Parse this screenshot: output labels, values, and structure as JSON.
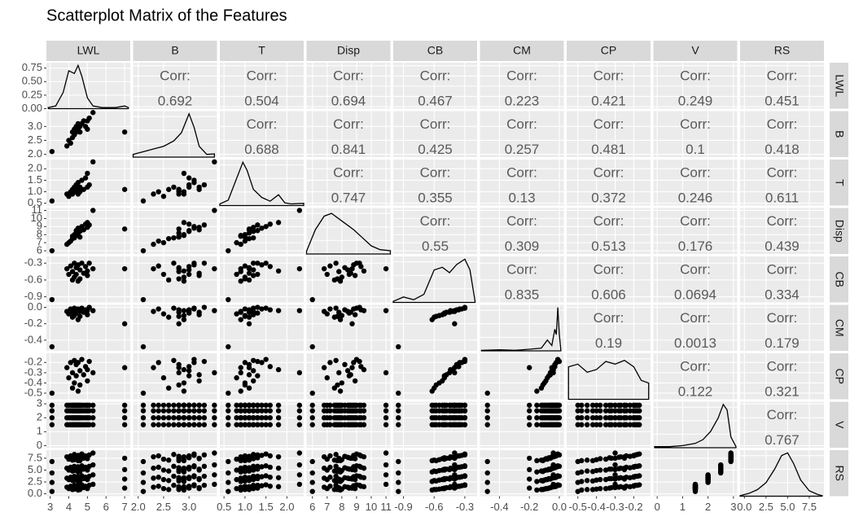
{
  "chart_data": {
    "type": "scatter_matrix",
    "title": "Scatterplot Matrix of the Features",
    "corr_label": "Corr:",
    "point_color": "#000000",
    "density_color": "#000000",
    "grid": true,
    "density_ylim": [
      0,
      0.85
    ],
    "density_ticks": [
      {
        "value": 0,
        "label": "0.00"
      },
      0.25,
      {
        "value": 0.5,
        "label": "0.50"
      },
      0.75
    ],
    "variables": [
      {
        "name": "LWL",
        "lim": [
          2.8,
          7.3
        ],
        "ticks": [
          3,
          4,
          5,
          6,
          7
        ],
        "values": [
          3.1,
          3.9,
          4.0,
          4.1,
          4.2,
          4.2,
          4.3,
          4.3,
          4.4,
          4.4,
          4.5,
          4.5,
          4.6,
          4.6,
          4.7,
          4.8,
          4.9,
          5.0,
          5.0,
          5.1,
          5.3,
          7.0
        ],
        "density": {
          "x": [
            2.9,
            3.3,
            3.7,
            4.0,
            4.3,
            4.5,
            4.7,
            5.0,
            5.3,
            5.8,
            6.5,
            7.0,
            7.2
          ],
          "y": [
            0.02,
            0.05,
            0.3,
            0.7,
            0.65,
            0.8,
            0.6,
            0.2,
            0.05,
            0.02,
            0.02,
            0.05,
            0.02
          ]
        }
      },
      {
        "name": "B",
        "lim": [
          1.9,
          3.55
        ],
        "ticks": [
          {
            "value": 2,
            "label": "2.0"
          },
          2.5,
          {
            "value": 3,
            "label": "3.0"
          }
        ],
        "values": [
          2.1,
          2.3,
          2.5,
          2.4,
          2.6,
          2.8,
          2.7,
          2.9,
          2.8,
          3.0,
          2.9,
          3.1,
          3.0,
          2.8,
          3.1,
          3.2,
          3.0,
          3.2,
          2.9,
          3.3,
          3.5,
          2.8
        ],
        "density": {
          "x": [
            1.9,
            2.1,
            2.3,
            2.5,
            2.7,
            2.85,
            3.0,
            3.1,
            3.2,
            3.35,
            3.5
          ],
          "y": [
            0.05,
            0.1,
            0.15,
            0.2,
            0.3,
            0.45,
            0.8,
            0.55,
            0.2,
            0.05,
            0.06
          ]
        }
      },
      {
        "name": "T",
        "lim": [
          0.4,
          2.4
        ],
        "ticks": [
          0.5,
          {
            "value": 1,
            "label": "1.0"
          },
          1.5,
          {
            "value": 2,
            "label": "2.0"
          }
        ],
        "values": [
          0.6,
          0.9,
          0.8,
          1.0,
          1.1,
          0.9,
          1.2,
          1.0,
          1.1,
          1.3,
          0.9,
          1.4,
          1.2,
          1.0,
          1.5,
          1.1,
          1.6,
          1.2,
          1.8,
          1.3,
          2.3,
          1.1
        ],
        "density": {
          "x": [
            0.4,
            0.6,
            0.8,
            0.95,
            1.05,
            1.2,
            1.4,
            1.6,
            1.8,
            1.95,
            2.1,
            2.4
          ],
          "y": [
            0.03,
            0.1,
            0.5,
            0.8,
            0.65,
            0.3,
            0.15,
            0.08,
            0.2,
            0.05,
            0.03,
            0.04
          ]
        }
      },
      {
        "name": "Disp",
        "lim": [
          5.6,
          11.3
        ],
        "ticks": [
          6,
          7,
          8,
          9,
          10,
          11
        ],
        "values": [
          6.0,
          6.8,
          7.0,
          7.2,
          7.5,
          7.8,
          7.6,
          8.0,
          8.2,
          8.5,
          7.9,
          8.8,
          8.4,
          7.7,
          9.0,
          8.6,
          9.3,
          8.9,
          9.5,
          9.2,
          11.0,
          8.7
        ],
        "density": {
          "x": [
            5.6,
            6.2,
            6.8,
            7.3,
            7.8,
            8.3,
            8.8,
            9.4,
            10,
            10.6,
            11.3
          ],
          "y": [
            0.05,
            0.45,
            0.7,
            0.75,
            0.65,
            0.55,
            0.45,
            0.3,
            0.15,
            0.08,
            0.06
          ]
        }
      },
      {
        "name": "CB",
        "lim": [
          -1.0,
          -0.18
        ],
        "ticks": [
          -0.9,
          -0.6,
          -0.3
        ],
        "values": [
          -0.95,
          -0.4,
          -0.5,
          -0.35,
          -0.6,
          -0.45,
          -0.3,
          -0.55,
          -0.38,
          -0.5,
          -0.62,
          -0.33,
          -0.42,
          -0.58,
          -0.3,
          -0.48,
          -0.36,
          -0.52,
          -0.44,
          -0.3,
          -0.4,
          -0.4
        ],
        "density": {
          "x": [
            -1.0,
            -0.9,
            -0.8,
            -0.7,
            -0.6,
            -0.52,
            -0.45,
            -0.38,
            -0.3,
            -0.25,
            -0.2
          ],
          "y": [
            0.02,
            0.1,
            0.05,
            0.15,
            0.6,
            0.65,
            0.55,
            0.7,
            0.8,
            0.6,
            0.02
          ]
        }
      },
      {
        "name": "CM",
        "lim": [
          -0.53,
          0.03
        ],
        "ticks": [
          -0.4,
          -0.2,
          {
            "value": 0,
            "label": "0.0"
          }
        ],
        "values": [
          -0.48,
          -0.05,
          -0.08,
          -0.02,
          -0.12,
          -0.06,
          -0.01,
          -0.1,
          -0.03,
          -0.07,
          -0.15,
          -0.02,
          -0.05,
          -0.11,
          -0.01,
          -0.06,
          -0.03,
          -0.09,
          -0.04,
          0,
          -0.04,
          -0.2
        ],
        "density": {
          "x": [
            -0.52,
            -0.4,
            -0.3,
            -0.2,
            -0.12,
            -0.08,
            -0.05,
            -0.03,
            -0.02,
            -0.01,
            0,
            0.01
          ],
          "y": [
            0.01,
            0.02,
            0.01,
            0.03,
            0.05,
            0.2,
            0.1,
            0.4,
            0.3,
            0.8,
            0.3,
            0.02
          ]
        }
      },
      {
        "name": "CP",
        "lim": [
          -0.56,
          -0.11
        ],
        "ticks": [
          -0.5,
          -0.4,
          -0.3,
          -0.2
        ],
        "values": [
          -0.5,
          -0.25,
          -0.35,
          -0.2,
          -0.45,
          -0.3,
          -0.18,
          -0.4,
          -0.22,
          -0.33,
          -0.48,
          -0.2,
          -0.28,
          -0.42,
          -0.17,
          -0.32,
          -0.24,
          -0.38,
          -0.27,
          -0.19,
          -0.3,
          -0.25
        ],
        "density": {
          "x": [
            -0.55,
            -0.5,
            -0.45,
            -0.4,
            -0.35,
            -0.3,
            -0.25,
            -0.2,
            -0.16,
            -0.12
          ],
          "y": [
            0.6,
            0.65,
            0.5,
            0.55,
            0.7,
            0.65,
            0.72,
            0.6,
            0.35,
            0.3
          ]
        }
      },
      {
        "name": "V",
        "lim": [
          -0.15,
          3.15
        ],
        "ticks": [
          0,
          1,
          2,
          3
        ],
        "values": [
          1.5,
          2.0,
          2.5,
          2.9
        ],
        "density": {
          "x": [
            -0.1,
            0.5,
            1.0,
            1.5,
            1.8,
            2.1,
            2.4,
            2.6,
            2.75,
            2.9,
            3.1
          ],
          "y": [
            0.02,
            0.02,
            0.04,
            0.08,
            0.15,
            0.3,
            0.55,
            0.8,
            0.7,
            0.2,
            0.02
          ]
        }
      },
      {
        "name": "RS",
        "lim": [
          -0.5,
          9.2
        ],
        "ticks": [
          {
            "value": 0,
            "label": "0.0"
          },
          2.5,
          {
            "value": 5,
            "label": "5.0"
          },
          7.5
        ],
        "values": [
          [
            0.5,
            2.4,
            4.4,
            6.8
          ],
          [
            1.4,
            3.3,
            5.4,
            7.8
          ],
          [
            1.1,
            3.0,
            5.0,
            7.3
          ],
          [
            1.6,
            3.5,
            5.6,
            8.0
          ],
          [
            0.9,
            2.8,
            4.8,
            7.1
          ],
          [
            1.3,
            3.1,
            5.1,
            7.5
          ],
          [
            1.8,
            3.7,
            5.8,
            8.3
          ],
          [
            1.0,
            2.9,
            4.9,
            7.2
          ],
          [
            1.5,
            3.4,
            5.5,
            7.9
          ],
          [
            1.2,
            3.2,
            5.2,
            7.6
          ],
          [
            0.8,
            2.6,
            4.6,
            7.0
          ],
          [
            1.7,
            3.6,
            5.7,
            8.1
          ],
          [
            1.4,
            3.3,
            5.3,
            7.7
          ],
          [
            0.9,
            2.7,
            4.7,
            7.0
          ],
          [
            1.9,
            3.8,
            5.9,
            8.4
          ],
          [
            1.3,
            3.2,
            5.2,
            7.5
          ],
          [
            1.6,
            3.5,
            5.6,
            8.0
          ],
          [
            1.1,
            3.0,
            5.0,
            7.4
          ],
          [
            1.5,
            3.4,
            5.4,
            7.8
          ],
          [
            1.8,
            3.7,
            5.8,
            8.2
          ],
          [
            2.0,
            4.0,
            6.1,
            8.6
          ],
          [
            1.2,
            3.1,
            5.1,
            7.5
          ]
        ],
        "density": {
          "x": [
            -0.5,
            0.5,
            1.5,
            2.5,
            3.5,
            4.3,
            5.0,
            5.7,
            6.5,
            7.5,
            8.5,
            9
          ],
          "y": [
            0.01,
            0.05,
            0.12,
            0.25,
            0.5,
            0.75,
            0.8,
            0.6,
            0.3,
            0.1,
            0.03,
            0.01
          ]
        }
      }
    ],
    "correlations": [
      [
        0.692,
        0.504,
        0.694,
        0.467,
        0.223,
        0.421,
        0.249,
        0.451
      ],
      [
        0.688,
        0.841,
        0.425,
        0.257,
        0.481,
        0.1,
        0.418
      ],
      [
        0.747,
        0.355,
        0.13,
        0.372,
        0.246,
        0.611
      ],
      [
        0.55,
        0.309,
        0.513,
        0.176,
        0.439
      ],
      [
        0.835,
        0.606,
        0.0694,
        0.334
      ],
      [
        0.19,
        0.0013,
        0.179
      ],
      [
        0.122,
        0.321
      ],
      [
        0.767
      ]
    ]
  }
}
